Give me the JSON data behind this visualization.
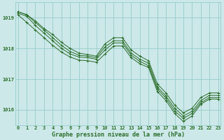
{
  "bg_color": "#cce8e8",
  "grid_color": "#99cccc",
  "line_color": "#2d6e2d",
  "xlabel": "Graphe pression niveau de la mer (hPa)",
  "yticks": [
    1016,
    1017,
    1018,
    1019
  ],
  "xticks": [
    0,
    1,
    2,
    3,
    4,
    5,
    6,
    7,
    8,
    9,
    10,
    11,
    12,
    13,
    14,
    15,
    16,
    17,
    18,
    19,
    20,
    21,
    22,
    23
  ],
  "xlim": [
    -0.3,
    23.3
  ],
  "ylim": [
    1015.5,
    1019.5
  ],
  "series": [
    [
      1019.2,
      1019.1,
      1018.9,
      1018.65,
      1018.45,
      1018.2,
      1018.0,
      1017.85,
      1017.8,
      1017.75,
      1018.15,
      1018.35,
      1018.35,
      1017.95,
      1017.75,
      1017.6,
      1016.85,
      1016.55,
      1016.15,
      1015.9,
      1016.05,
      1016.4,
      1016.55,
      1016.55
    ],
    [
      1019.2,
      1019.1,
      1018.85,
      1018.6,
      1018.35,
      1018.1,
      1017.9,
      1017.78,
      1017.75,
      1017.7,
      1018.05,
      1018.25,
      1018.25,
      1017.85,
      1017.65,
      1017.52,
      1016.75,
      1016.45,
      1016.05,
      1015.8,
      1015.95,
      1016.3,
      1016.47,
      1016.47
    ],
    [
      1019.15,
      1019.05,
      1018.75,
      1018.5,
      1018.25,
      1018.0,
      1017.82,
      1017.72,
      1017.7,
      1017.65,
      1017.95,
      1018.18,
      1018.18,
      1017.78,
      1017.58,
      1017.44,
      1016.68,
      1016.38,
      1015.96,
      1015.72,
      1015.88,
      1016.23,
      1016.4,
      1016.4
    ],
    [
      1019.1,
      1018.85,
      1018.6,
      1018.35,
      1018.1,
      1017.88,
      1017.72,
      1017.62,
      1017.6,
      1017.55,
      1017.82,
      1018.08,
      1018.08,
      1017.7,
      1017.5,
      1017.38,
      1016.6,
      1016.3,
      1015.88,
      1015.62,
      1015.8,
      1016.18,
      1016.35,
      1016.35
    ]
  ]
}
